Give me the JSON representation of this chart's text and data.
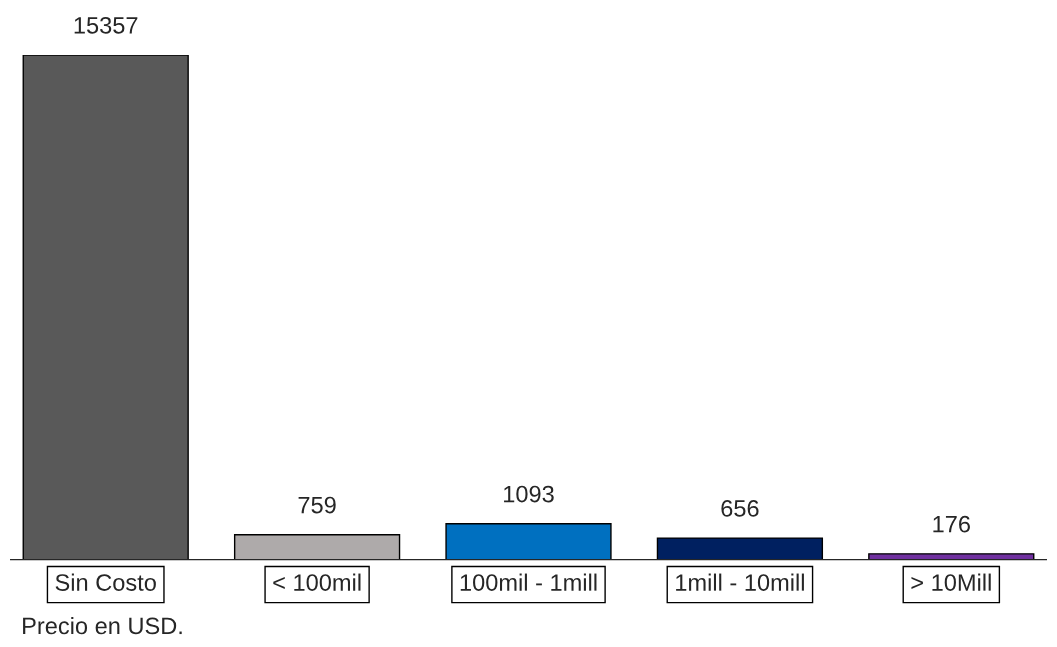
{
  "chart_data": {
    "type": "bar",
    "categories": [
      "Sin Costo",
      "< 100mil",
      "100mil - 1mill",
      "1mill - 10mill",
      "> 10Mill"
    ],
    "values": [
      15357,
      759,
      1093,
      656,
      176
    ],
    "colors": [
      "#595959",
      "#aeaaaa",
      "#0070c0",
      "#002060",
      "#7030a0"
    ],
    "data_labels": true,
    "grid": false,
    "annotations": [
      "Precio en USD."
    ]
  }
}
